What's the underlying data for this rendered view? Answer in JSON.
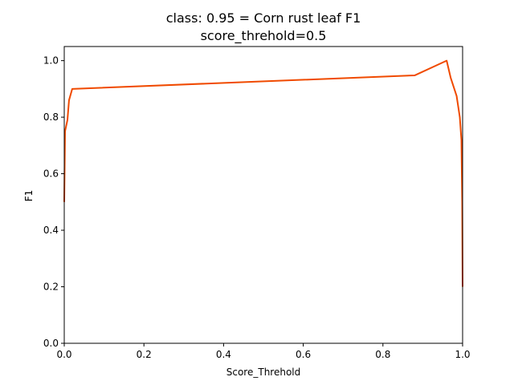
{
  "chart_data": {
    "type": "line",
    "title": "class: 0.95 = Corn rust leaf F1",
    "subtitle": "score_threhold=0.5",
    "xlabel": "Score_Threhold",
    "ylabel": "F1",
    "xlim": [
      0,
      1
    ],
    "ylim": [
      0,
      1.05
    ],
    "xticks": [
      0.0,
      0.2,
      0.4,
      0.6,
      0.8,
      1.0
    ],
    "yticks": [
      0.0,
      0.2,
      0.4,
      0.6,
      0.8,
      1.0
    ],
    "xtick_labels": [
      "0.0",
      "0.2",
      "0.4",
      "0.6",
      "0.8",
      "1.0"
    ],
    "ytick_labels": [
      "0.0",
      "0.2",
      "0.4",
      "0.6",
      "0.8",
      "1.0"
    ],
    "grid": false,
    "series": [
      {
        "color": "#f04a00",
        "x": [
          0.0,
          0.002,
          0.008,
          0.012,
          0.02,
          0.88,
          0.96,
          0.97,
          0.985,
          0.993,
          0.997,
          0.999,
          1.0
        ],
        "y": [
          0.5,
          0.75,
          0.79,
          0.86,
          0.9,
          0.948,
          1.0,
          0.94,
          0.875,
          0.8,
          0.72,
          0.5,
          0.2
        ]
      }
    ]
  }
}
